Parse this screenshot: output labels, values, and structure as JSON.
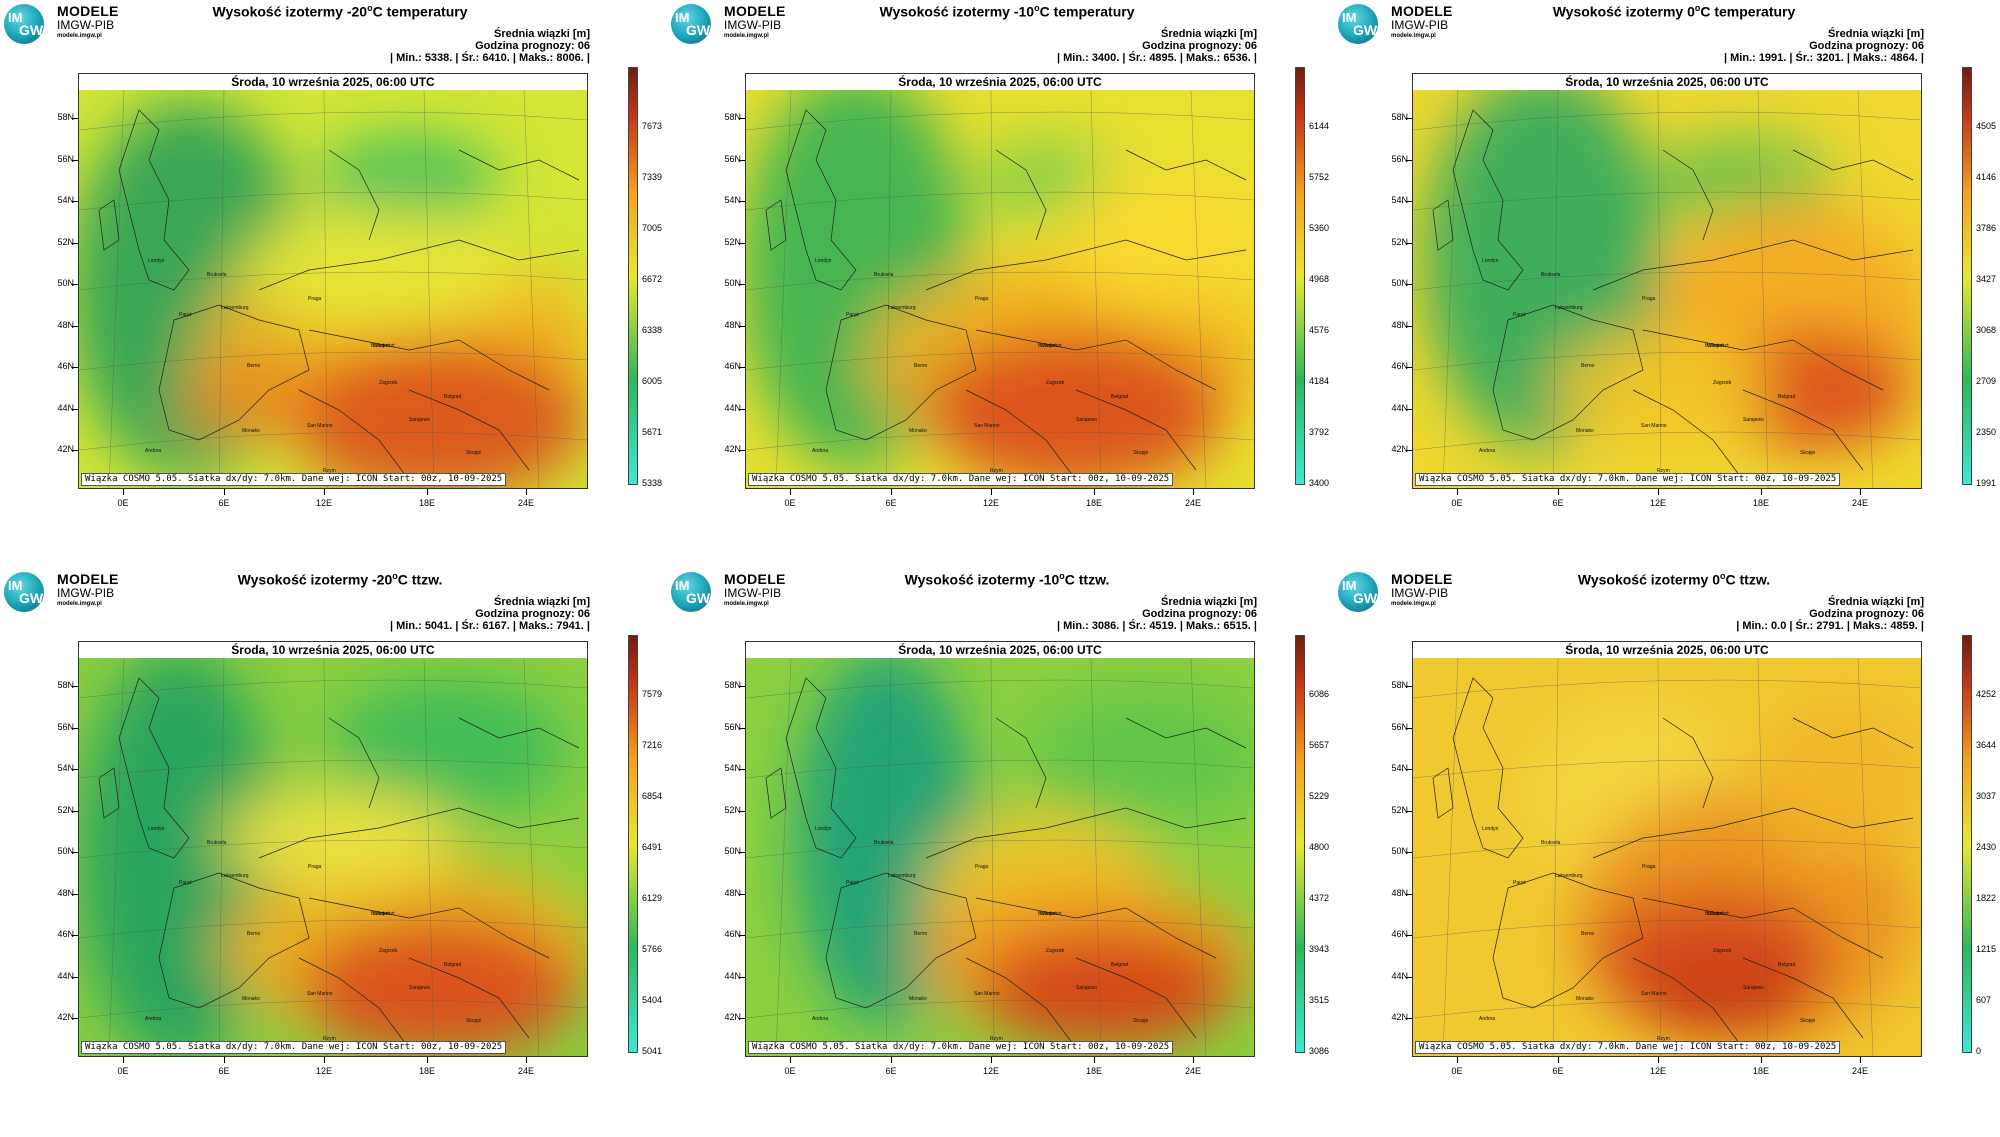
{
  "logo": {
    "top": "MODELE",
    "mid": "IMGW-PIB",
    "url": "modele.imgw.pl",
    "circle_l1": "IM",
    "circle_l2": "GW"
  },
  "info_label": "Średnia wiązki [m]",
  "forecast_hour": "Godzina prognozy: 06",
  "map_header": "Środa, 10 września 2025, 06:00 UTC",
  "footer": "Wiązka COSMO 5.05. Siatka dx/dy: 7.0km. Dane wej: ICON Start: 00z, 10-09-2025",
  "lat_labels": [
    "58N",
    "56N",
    "54N",
    "52N",
    "50N",
    "48N",
    "46N",
    "44N",
    "42N"
  ],
  "lon_labels": [
    "0E",
    "6E",
    "12E",
    "18E",
    "24E"
  ],
  "cities": [
    "Londyn",
    "Bruksela",
    "Paryż",
    "Luksemburg",
    "Praga",
    "Wiedeń",
    "Budapeszt",
    "Berno",
    "Zagrzeb",
    "Belgrad",
    "San Marino",
    "Sarajewo",
    "Monako",
    "Andora",
    "Rzym",
    "Skopje"
  ],
  "colors": {
    "low": "#3de8d4",
    "green": "#2db85a",
    "mid": "#e8e830",
    "orange": "#f5a020",
    "high": "#c8381a",
    "top": "#6e1e10"
  },
  "panels": [
    {
      "title_pre": "Wysokość izotermy -20",
      "title_post": "C temperatury",
      "sup": "o",
      "stats": "| Min.:   5338. | Śr.:   6410. | Maks.:   8006. |",
      "cbar": [
        "7673",
        "7339",
        "7005",
        "6672",
        "6338",
        "6005",
        "5671",
        "5338"
      ]
    },
    {
      "title_pre": "Wysokość izotermy -10",
      "title_post": "C temperatury",
      "sup": "o",
      "stats": "| Min.:   3400. | Śr.:   4895. | Maks.:   6536. |",
      "cbar": [
        "6144",
        "5752",
        "5360",
        "4968",
        "4576",
        "4184",
        "3792",
        "3400"
      ]
    },
    {
      "title_pre": "Wysokość izotermy 0",
      "title_post": "C temperatury",
      "sup": "o",
      "stats": "| Min.:   1991. | Śr.:   3201. | Maks.:   4864. |",
      "cbar": [
        "4505",
        "4146",
        "3786",
        "3427",
        "3068",
        "2709",
        "2350",
        "1991"
      ]
    },
    {
      "title_pre": "Wysokość izotermy -20",
      "title_post": "C ttzw.",
      "sup": "o",
      "stats": "| Min.:   5041. | Śr.:   6167. | Maks.:   7941. |",
      "cbar": [
        "7579",
        "7216",
        "6854",
        "6491",
        "6129",
        "5766",
        "5404",
        "5041"
      ]
    },
    {
      "title_pre": "Wysokość izotermy -10",
      "title_post": "C ttzw.",
      "sup": "o",
      "stats": "| Min.:   3086. | Śr.:   4519. | Maks.:   6515. |",
      "cbar": [
        "6086",
        "5657",
        "5229",
        "4800",
        "4372",
        "3943",
        "3515",
        "3086"
      ]
    },
    {
      "title_pre": "Wysokość izotermy 0",
      "title_post": "C ttzw.",
      "sup": "o",
      "stats": "| Min.:    0.0 | Śr.:   2791. | Maks.:   4859. |",
      "cbar": [
        "4252",
        "3644",
        "3037",
        "2430",
        "1822",
        "1215",
        "607",
        "0"
      ]
    }
  ]
}
